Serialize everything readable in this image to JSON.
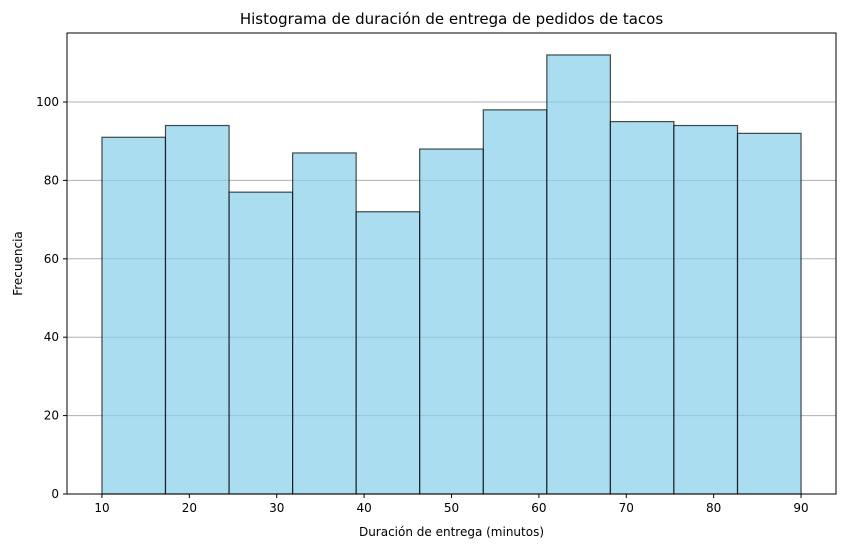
{
  "chart_data": {
    "type": "bar",
    "title": "Histograma de duración de entrega de pedidos de tacos",
    "xlabel": "Duración de entrega (minutos)",
    "ylabel": "Frecuencia",
    "bins": [
      [
        10.0,
        17.27
      ],
      [
        17.27,
        24.55
      ],
      [
        24.55,
        31.82
      ],
      [
        31.82,
        39.09
      ],
      [
        39.09,
        46.36
      ],
      [
        46.36,
        53.64
      ],
      [
        53.64,
        60.91
      ],
      [
        60.91,
        68.18
      ],
      [
        68.18,
        75.45
      ],
      [
        75.45,
        82.73
      ],
      [
        82.73,
        90.0
      ]
    ],
    "values": [
      91,
      94,
      77,
      87,
      72,
      88,
      98,
      112,
      95,
      94,
      92
    ],
    "xlim": [
      6,
      94
    ],
    "ylim": [
      0,
      117.6
    ],
    "xticks": [
      "10",
      "20",
      "30",
      "40",
      "50",
      "60",
      "70",
      "80",
      "90"
    ],
    "yticks": [
      "0",
      "20",
      "40",
      "60",
      "80",
      "100"
    ],
    "grid": "horizontal",
    "colors": {
      "fill": "#87ceeb",
      "edge": "#000000",
      "grid": "#b0b0b0"
    }
  }
}
